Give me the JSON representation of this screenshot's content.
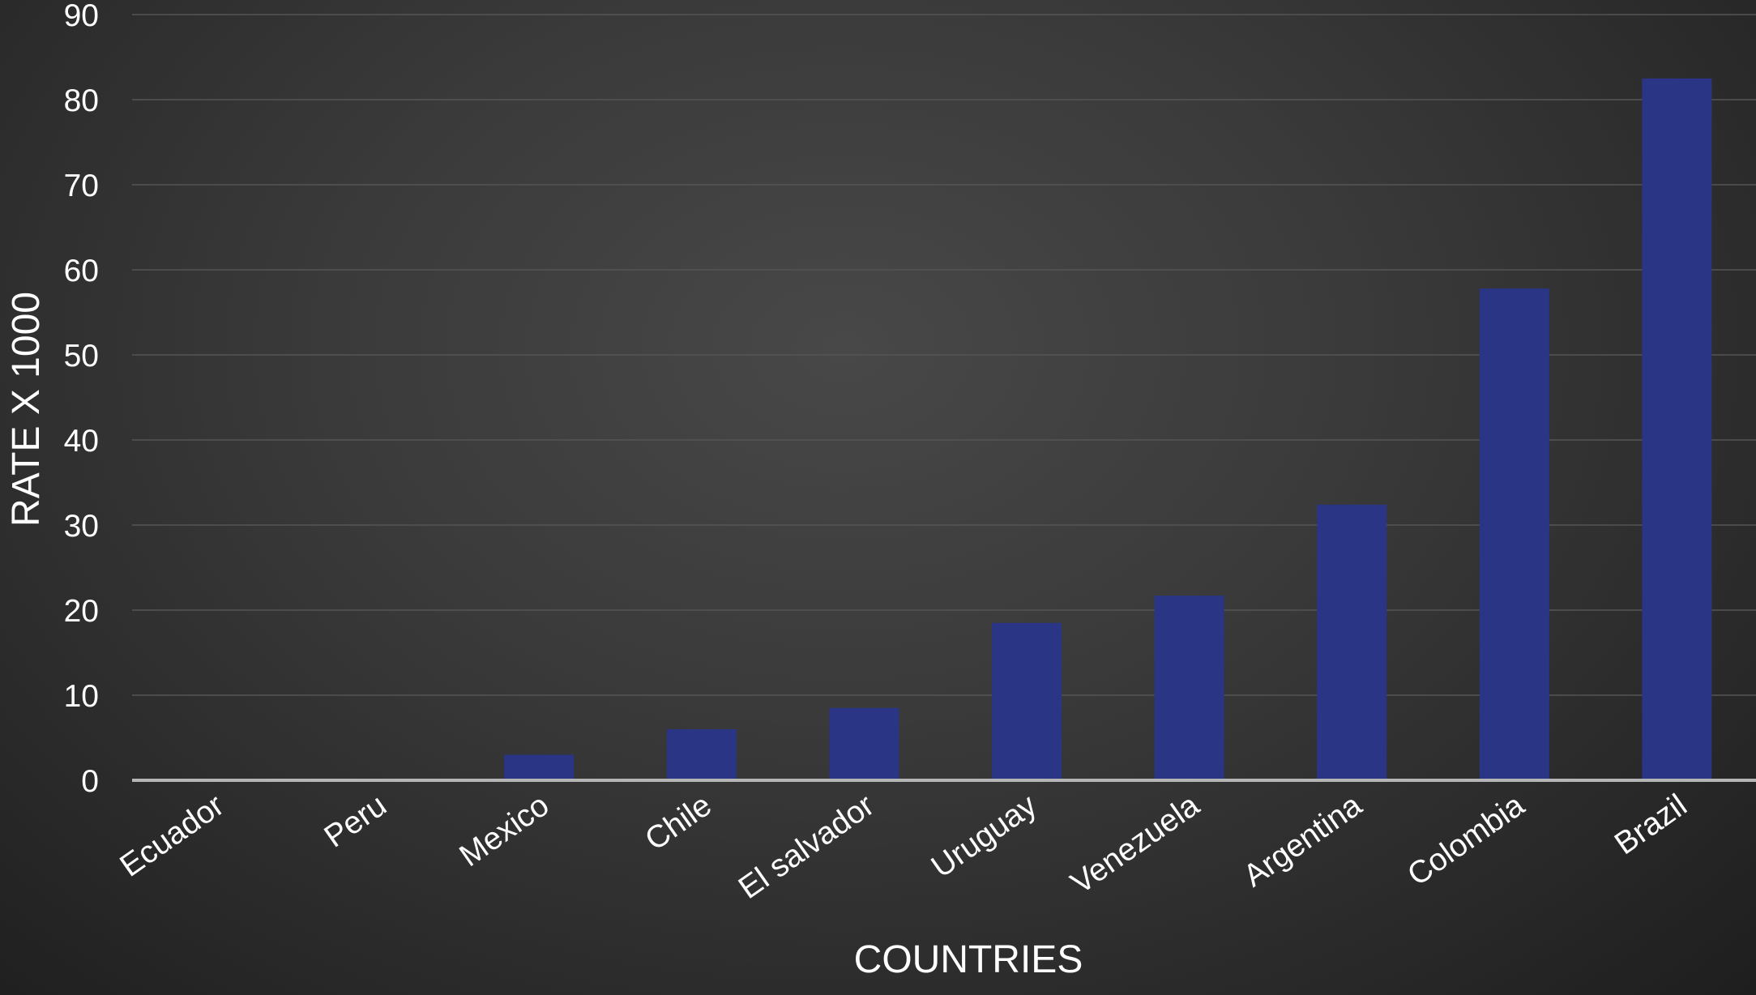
{
  "chart_data": {
    "type": "bar",
    "title": "",
    "xlabel": "COUNTRIES",
    "ylabel": "RATE X 1000",
    "categories": [
      "Ecuador",
      "Peru",
      "Mexico",
      "Chile",
      "El salvador",
      "Uruguay",
      "Venezuela",
      "Argentina",
      "Colombia",
      "Brazil"
    ],
    "values": [
      0,
      0,
      3,
      6,
      8.5,
      18.5,
      21.7,
      32.4,
      57.8,
      82.5
    ],
    "ylim": [
      0,
      90
    ],
    "yticks": [
      0,
      10,
      20,
      30,
      40,
      50,
      60,
      70,
      80,
      90
    ],
    "grid": true,
    "legend": "none",
    "colors": {
      "bar": "#2a3585",
      "gridline": "#555555",
      "baseline": "#b5b5b5",
      "text": "#ffffff",
      "background": "#3a3a3a"
    }
  }
}
